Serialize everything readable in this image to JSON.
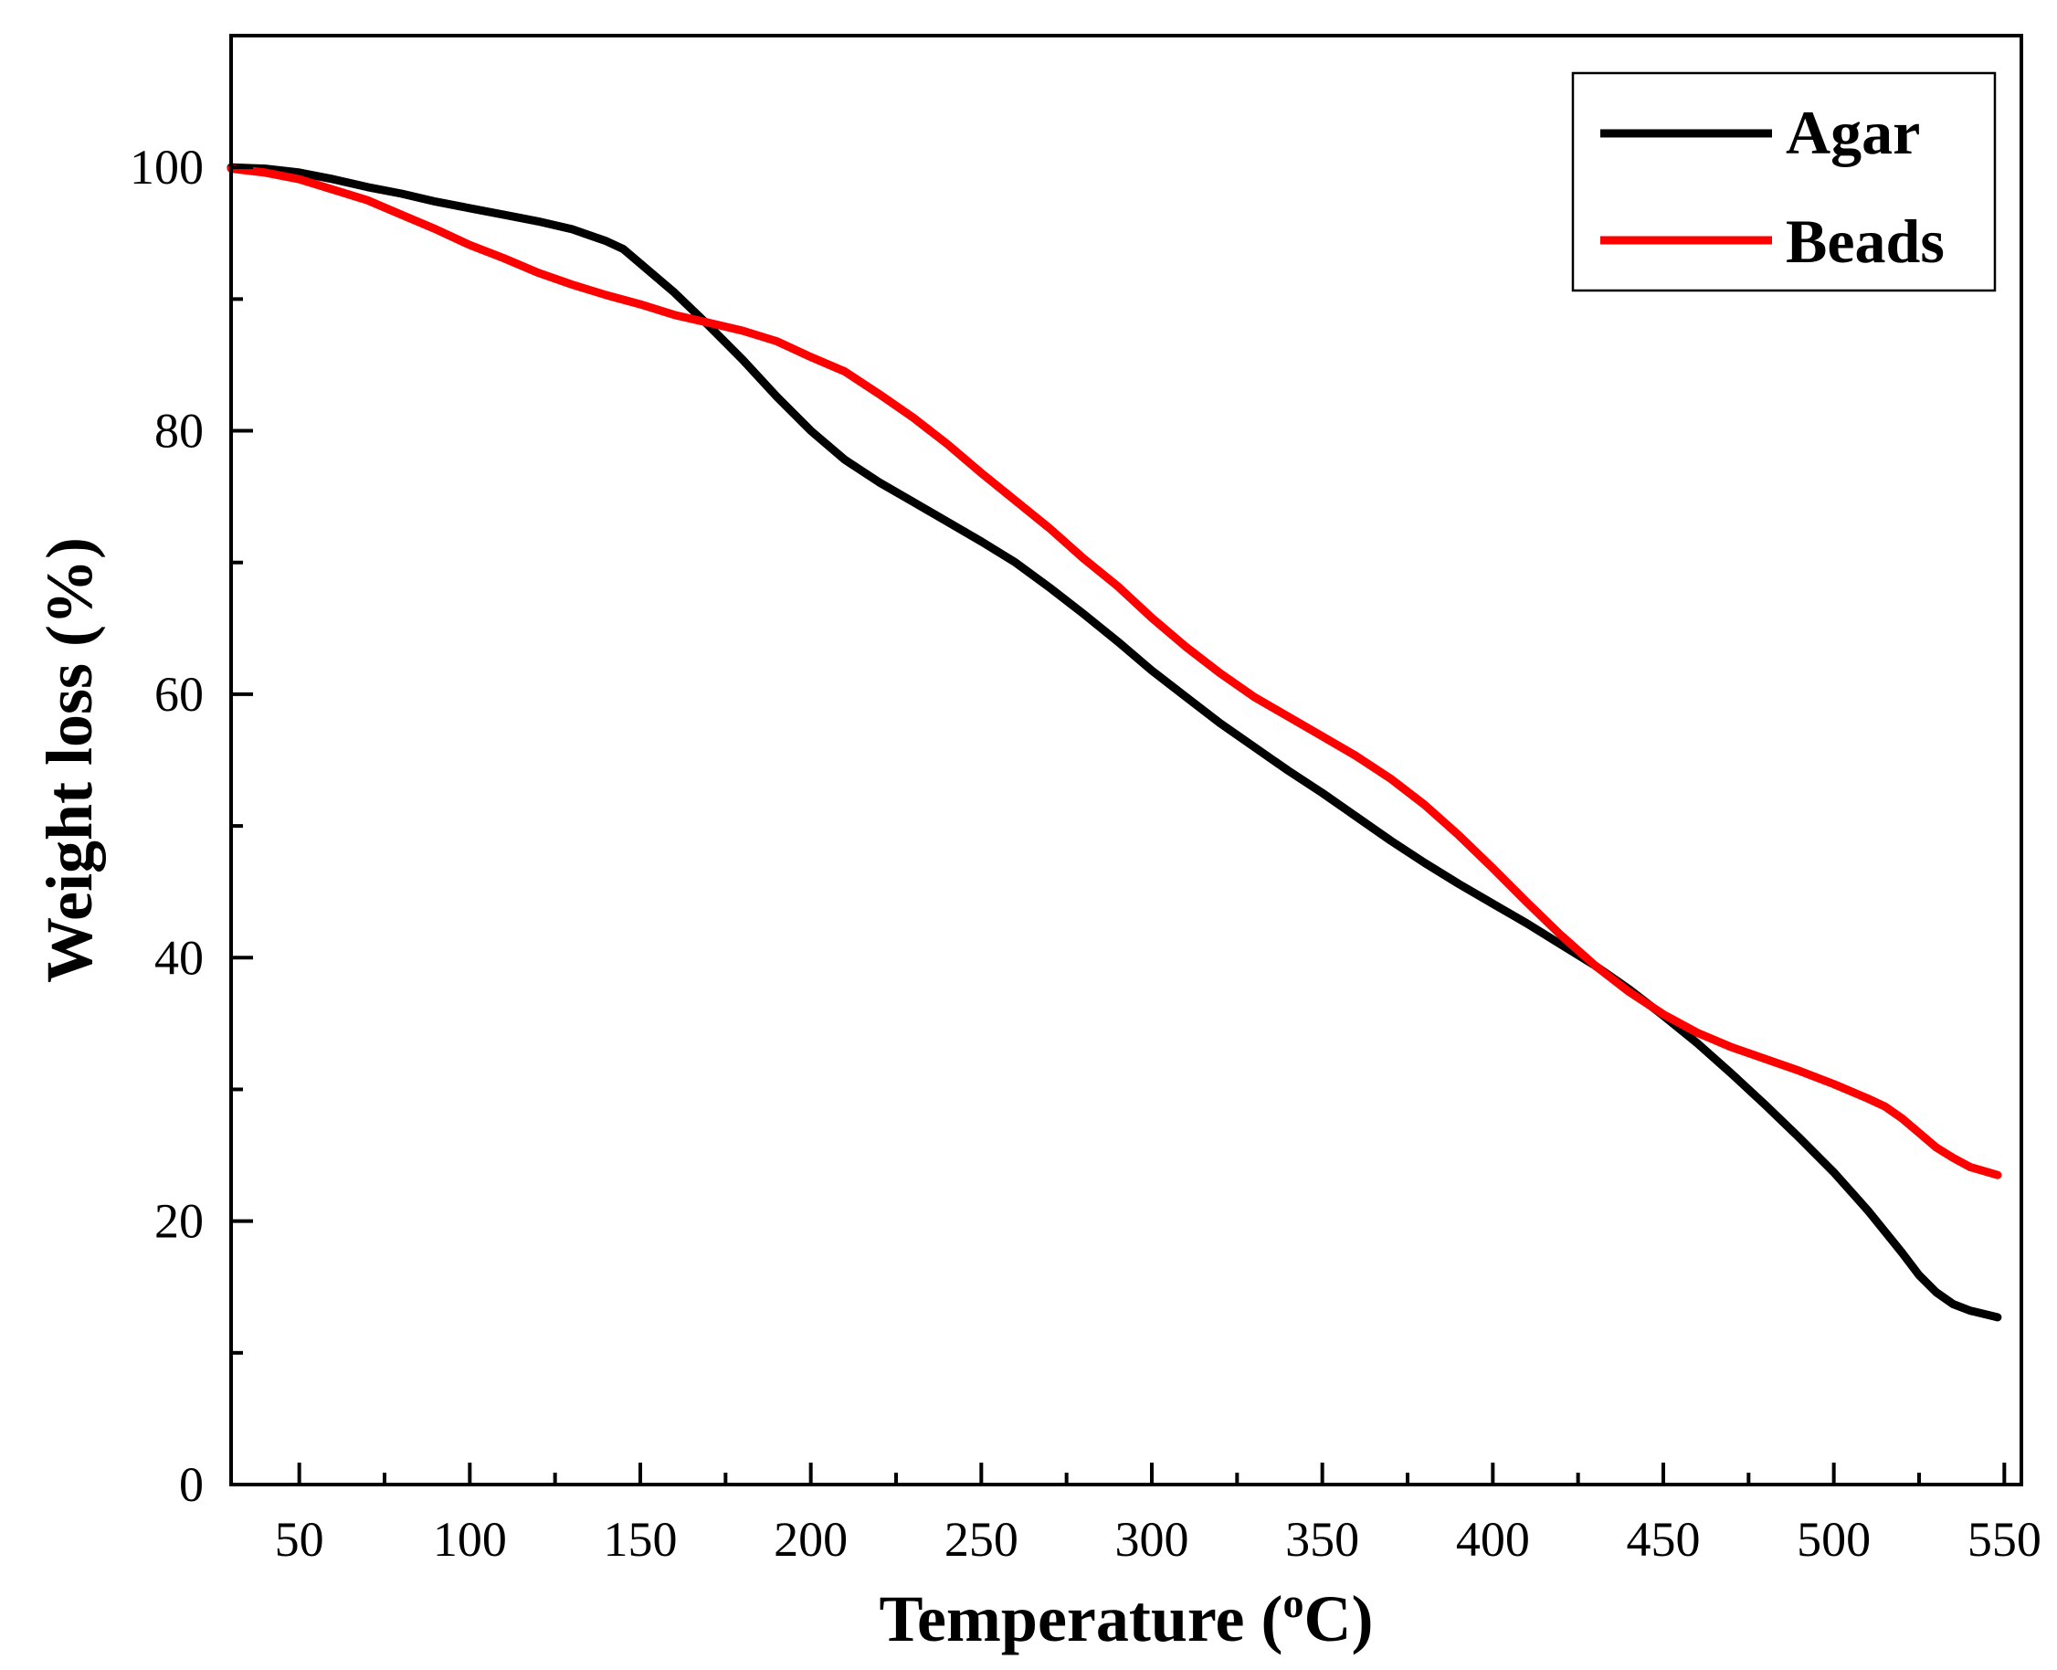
{
  "chart_data": {
    "type": "line",
    "title": "",
    "xlabel": "Temperature",
    "xlabel_unit_prefix": "(",
    "xlabel_unit_sup": "o",
    "xlabel_unit_suffix": "C)",
    "ylabel": "Weight loss (%)",
    "xlim": [
      30,
      555
    ],
    "ylim": [
      0,
      110
    ],
    "xticks": [
      50,
      100,
      150,
      200,
      250,
      300,
      350,
      400,
      450,
      500,
      550
    ],
    "yticks": [
      0,
      20,
      40,
      60,
      80,
      100
    ],
    "xminor": [
      75,
      125,
      175,
      225,
      275,
      325,
      375,
      425,
      475,
      525
    ],
    "yminor": [
      10,
      30,
      50,
      70,
      90
    ],
    "grid": false,
    "legend_position": "top-right",
    "series": [
      {
        "name": "Agar",
        "color": "#000000",
        "points": [
          [
            30,
            100
          ],
          [
            40,
            99.9
          ],
          [
            50,
            99.6
          ],
          [
            60,
            99.1
          ],
          [
            70,
            98.5
          ],
          [
            80,
            98.0
          ],
          [
            90,
            97.4
          ],
          [
            100,
            96.9
          ],
          [
            110,
            96.4
          ],
          [
            120,
            95.9
          ],
          [
            130,
            95.3
          ],
          [
            140,
            94.4
          ],
          [
            145,
            93.8
          ],
          [
            150,
            92.7
          ],
          [
            160,
            90.5
          ],
          [
            170,
            88.0
          ],
          [
            180,
            85.4
          ],
          [
            190,
            82.6
          ],
          [
            200,
            80.0
          ],
          [
            210,
            77.8
          ],
          [
            220,
            76.1
          ],
          [
            230,
            74.6
          ],
          [
            240,
            73.1
          ],
          [
            250,
            71.6
          ],
          [
            260,
            70.0
          ],
          [
            270,
            68.1
          ],
          [
            280,
            66.1
          ],
          [
            290,
            64.0
          ],
          [
            300,
            61.8
          ],
          [
            310,
            59.8
          ],
          [
            320,
            57.8
          ],
          [
            330,
            56.0
          ],
          [
            340,
            54.2
          ],
          [
            350,
            52.5
          ],
          [
            360,
            50.7
          ],
          [
            370,
            48.9
          ],
          [
            380,
            47.2
          ],
          [
            390,
            45.6
          ],
          [
            400,
            44.1
          ],
          [
            410,
            42.6
          ],
          [
            420,
            41.0
          ],
          [
            430,
            39.4
          ],
          [
            440,
            37.6
          ],
          [
            450,
            35.6
          ],
          [
            460,
            33.5
          ],
          [
            470,
            31.2
          ],
          [
            480,
            28.8
          ],
          [
            490,
            26.3
          ],
          [
            500,
            23.7
          ],
          [
            510,
            20.8
          ],
          [
            515,
            19.2
          ],
          [
            520,
            17.6
          ],
          [
            525,
            15.9
          ],
          [
            530,
            14.6
          ],
          [
            535,
            13.7
          ],
          [
            540,
            13.2
          ],
          [
            548,
            12.7
          ]
        ]
      },
      {
        "name": "Beads",
        "color": "#ff0000",
        "points": [
          [
            30,
            99.9
          ],
          [
            40,
            99.6
          ],
          [
            50,
            99.1
          ],
          [
            60,
            98.3
          ],
          [
            70,
            97.5
          ],
          [
            80,
            96.4
          ],
          [
            90,
            95.3
          ],
          [
            100,
            94.1
          ],
          [
            110,
            93.1
          ],
          [
            120,
            92.0
          ],
          [
            130,
            91.1
          ],
          [
            140,
            90.3
          ],
          [
            150,
            89.6
          ],
          [
            160,
            88.8
          ],
          [
            170,
            88.2
          ],
          [
            180,
            87.6
          ],
          [
            190,
            86.8
          ],
          [
            200,
            85.6
          ],
          [
            210,
            84.5
          ],
          [
            220,
            82.8
          ],
          [
            230,
            81.0
          ],
          [
            240,
            79.0
          ],
          [
            250,
            76.8
          ],
          [
            260,
            74.7
          ],
          [
            270,
            72.6
          ],
          [
            280,
            70.3
          ],
          [
            290,
            68.2
          ],
          [
            300,
            65.8
          ],
          [
            310,
            63.6
          ],
          [
            320,
            61.6
          ],
          [
            330,
            59.8
          ],
          [
            340,
            58.3
          ],
          [
            350,
            56.8
          ],
          [
            360,
            55.3
          ],
          [
            370,
            53.6
          ],
          [
            380,
            51.6
          ],
          [
            390,
            49.3
          ],
          [
            400,
            46.8
          ],
          [
            410,
            44.2
          ],
          [
            420,
            41.7
          ],
          [
            430,
            39.4
          ],
          [
            440,
            37.4
          ],
          [
            450,
            35.7
          ],
          [
            460,
            34.3
          ],
          [
            470,
            33.2
          ],
          [
            480,
            32.3
          ],
          [
            490,
            31.4
          ],
          [
            500,
            30.4
          ],
          [
            510,
            29.3
          ],
          [
            515,
            28.7
          ],
          [
            520,
            27.8
          ],
          [
            525,
            26.7
          ],
          [
            530,
            25.6
          ],
          [
            535,
            24.8
          ],
          [
            540,
            24.1
          ],
          [
            548,
            23.5
          ]
        ]
      }
    ]
  }
}
